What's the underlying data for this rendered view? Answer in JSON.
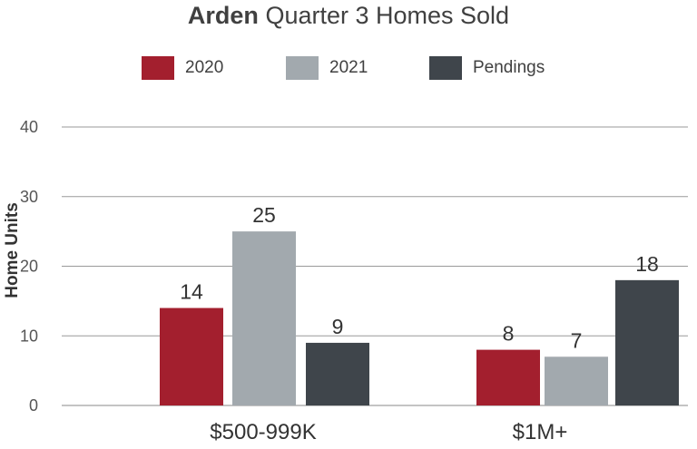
{
  "chart_data": {
    "type": "bar",
    "title_bold": "Arden",
    "title_rest": " Quarter 3 Homes Sold",
    "ylabel": "Home Units",
    "xlabel": "",
    "ylim": [
      0,
      40
    ],
    "yticks": [
      0,
      10,
      20,
      30,
      40
    ],
    "grid": true,
    "legend_position": "top",
    "categories": [
      "$500-999K",
      "$1M+"
    ],
    "series": [
      {
        "name": "2020",
        "values": [
          14,
          8
        ],
        "color": "#a31f2e"
      },
      {
        "name": "2021",
        "values": [
          25,
          7
        ],
        "color": "#a2a9ae"
      },
      {
        "name": "Pendings",
        "values": [
          9,
          18
        ],
        "color": "#3f454b"
      }
    ]
  }
}
